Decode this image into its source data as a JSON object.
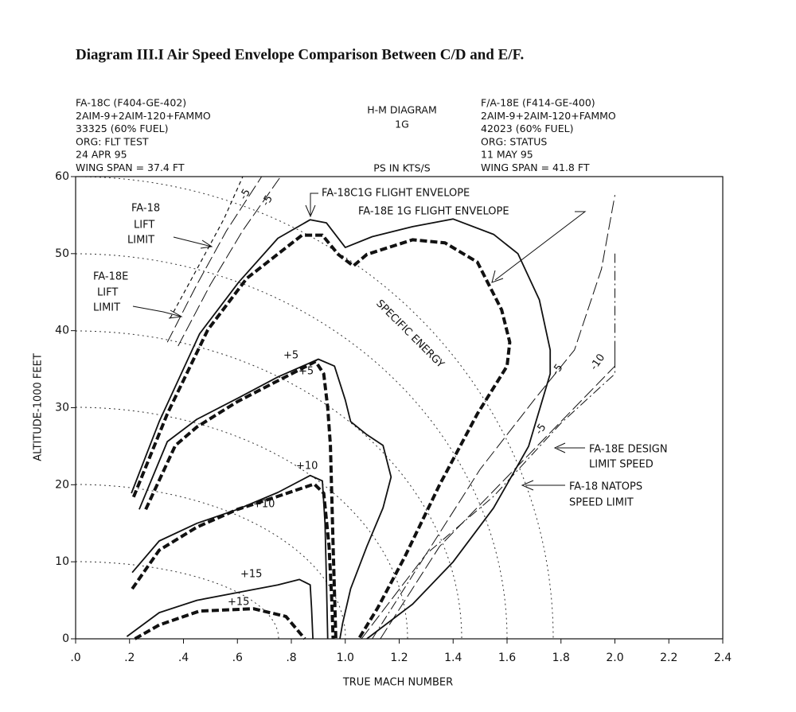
{
  "chart_data": {
    "type": "line",
    "title": "Diagram III.I    Air Speed Envelope Comparison Between C/D and E/F.",
    "header_left": [
      "FA-18C (F404-GE-402)",
      "2AIM-9+2AIM-120+FAMMO",
      "33325 (60% FUEL)",
      "ORG: FLT TEST",
      "24 APR 95",
      "WING SPAN = 37.4 FT"
    ],
    "header_center": [
      "H-M DIAGRAM",
      "1G",
      "PS IN KTS/S"
    ],
    "header_right": [
      "F/A-18E (F414-GE-400)",
      "2AIM-9+2AIM-120+FAMMO",
      "42023 (60% FUEL)",
      "ORG: STATUS",
      "11 MAY 95",
      "WING SPAN = 41.8 FT"
    ],
    "xlabel": "TRUE MACH NUMBER",
    "ylabel": "ALTITUDE-1000 FEET",
    "xlim": [
      0,
      2.4
    ],
    "ylim": [
      0,
      60
    ],
    "xticks": [
      {
        "value": 0,
        "label": ".0"
      },
      {
        "value": 0.2,
        "label": ".2"
      },
      {
        "value": 0.4,
        "label": ".4"
      },
      {
        "value": 0.6,
        "label": ".6"
      },
      {
        "value": 0.8,
        "label": ".8"
      },
      {
        "value": 1,
        "label": "1.0"
      },
      1.2,
      1.4,
      1.6,
      1.8,
      {
        "value": 2,
        "label": "2.0"
      },
      2.2,
      2.4
    ],
    "yticks": [
      0,
      10,
      20,
      30,
      40,
      50,
      60
    ],
    "color": "#111111",
    "annotations": [
      "FA-18C1G FLIGHT ENVELOPE",
      "FA-18E 1G FLIGHT ENVELOPE",
      "FA-18",
      "LIFT",
      "LIMIT",
      "FA-18E",
      "LIFT",
      "LIMIT",
      "SPECIFIC ENERGY",
      "+5",
      "+5",
      "+10",
      "+10",
      "+15",
      "+15",
      "-5",
      "-5",
      "-5",
      "-5",
      "-10",
      "FA-18E DESIGN",
      "LIMIT SPEED",
      "FA-18 NATOPS",
      "SPEED LIMIT"
    ],
    "series": [
      {
        "style": "solid",
        "x": [
          0.207,
          0.31,
          0.46,
          0.605,
          0.75,
          0.87,
          0.93,
          1.0,
          1.1,
          1.25,
          1.4,
          1.55,
          1.64,
          1.72,
          1.76,
          1.76,
          1.68,
          1.55,
          1.4,
          1.25,
          1.08
        ],
        "y": [
          18.9,
          28.2,
          39.6,
          46.3,
          52,
          54.4,
          54,
          50.8,
          52.2,
          53.5,
          54.5,
          52.5,
          50,
          44,
          37.5,
          34.4,
          25,
          17,
          10,
          4.5,
          0
        ]
      },
      {
        "style": "thick-dashed",
        "x": [
          0.215,
          0.34,
          0.49,
          0.635,
          0.84,
          0.915,
          0.974,
          1.03,
          1.08,
          1.25,
          1.37,
          1.49,
          1.58,
          1.61,
          1.6,
          1.49,
          1.35,
          1.22,
          1.12,
          1.05
        ],
        "y": [
          18.4,
          29.2,
          40.1,
          46.8,
          52.4,
          52.4,
          49.9,
          48.4,
          49.9,
          51.8,
          51.4,
          48.9,
          42.7,
          38.5,
          35.4,
          29.2,
          20,
          10.6,
          4,
          0
        ]
      },
      {
        "style": "solid",
        "x": [
          0.236,
          0.34,
          0.45,
          0.605,
          0.75,
          0.9,
          0.96,
          1.0,
          1.02,
          1.08,
          1.14,
          1.17,
          1.14,
          1.08,
          1.02,
          0.99,
          0.98
        ],
        "y": [
          16.8,
          25.6,
          28.5,
          31.3,
          34,
          36.3,
          35.4,
          31,
          28.2,
          26.5,
          25.1,
          21,
          17,
          12,
          6.5,
          2,
          0
        ]
      },
      {
        "style": "thick-dashed",
        "x": [
          0.26,
          0.37,
          0.45,
          0.6,
          0.75,
          0.89,
          0.92,
          0.935,
          0.945,
          0.955,
          0.965
        ],
        "y": [
          16.8,
          25.1,
          27.5,
          30.8,
          33.5,
          36,
          34.4,
          30,
          25.1,
          12,
          0
        ]
      },
      {
        "style": "solid",
        "x": [
          0.21,
          0.31,
          0.45,
          0.6,
          0.75,
          0.87,
          0.915,
          0.925,
          0.93,
          0.935
        ],
        "y": [
          8.6,
          12.7,
          15,
          16.8,
          19,
          21.2,
          20.5,
          15,
          8,
          0
        ]
      },
      {
        "style": "thick-dashed",
        "x": [
          0.21,
          0.31,
          0.45,
          0.6,
          0.75,
          0.885,
          0.92,
          0.94,
          0.95,
          0.955
        ],
        "y": [
          6.5,
          11.5,
          14.5,
          16.8,
          18.5,
          20.1,
          18.9,
          12,
          5,
          0
        ]
      },
      {
        "style": "solid",
        "x": [
          0.19,
          0.31,
          0.45,
          0.6,
          0.75,
          0.83,
          0.87,
          0.875,
          0.88
        ],
        "y": [
          0.3,
          3.4,
          5,
          6,
          7,
          7.7,
          7,
          4,
          0
        ]
      },
      {
        "style": "thick-dashed",
        "x": [
          0.22,
          0.31,
          0.46,
          0.66,
          0.78,
          0.85
        ],
        "y": [
          0,
          1.8,
          3.6,
          3.9,
          2.9,
          0
        ]
      },
      {
        "style": "dashed",
        "x": [
          0.35,
          0.45,
          0.55,
          0.62
        ],
        "y": [
          41.6,
          48,
          54.5,
          60
        ]
      },
      {
        "style": "long-dash",
        "x": [
          0.34,
          0.45,
          0.56,
          0.69
        ],
        "y": [
          38.5,
          46,
          53,
          60
        ]
      },
      {
        "style": "long-dash",
        "x": [
          0.38,
          0.5,
          0.62,
          0.76
        ],
        "y": [
          38,
          46,
          53,
          60
        ]
      },
      {
        "style": "long-dash",
        "x": [
          1.06,
          1.3,
          1.5,
          1.7,
          1.85,
          1.95,
          2.0
        ],
        "y": [
          0,
          11,
          22,
          31,
          37.5,
          48,
          57.6
        ]
      },
      {
        "style": "dash-dot",
        "x": [
          1.1,
          1.3,
          1.55,
          1.8,
          2.0,
          2.0
        ],
        "y": [
          0,
          11,
          18.5,
          28,
          34.4,
          50
        ]
      },
      {
        "style": "long-dash",
        "x": [
          1.13,
          1.35,
          1.6,
          1.85,
          2.0,
          2.0
        ],
        "y": [
          0,
          12,
          21,
          30,
          35.4,
          37.5
        ]
      }
    ]
  }
}
